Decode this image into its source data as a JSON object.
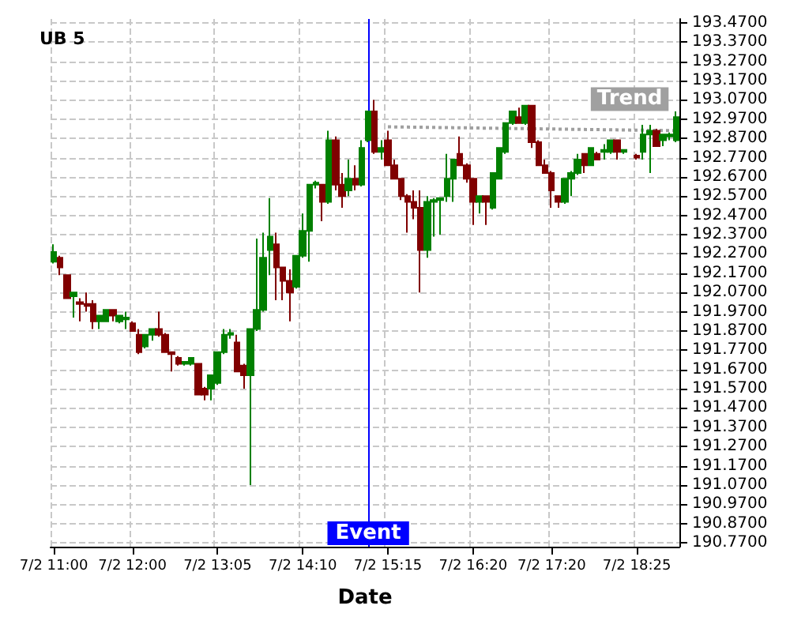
{
  "chart_data": {
    "type": "candlestick",
    "title": "UB 5",
    "xlabel": "Date",
    "categories": [
      "7/2 11:00",
      null,
      null,
      null,
      null,
      null,
      null,
      null,
      null,
      null,
      null,
      null,
      "7/2 12:00",
      null,
      null,
      null,
      null,
      null,
      null,
      null,
      null,
      null,
      null,
      null,
      null,
      "7/2 13:05",
      null,
      null,
      null,
      null,
      null,
      null,
      null,
      null,
      null,
      null,
      null,
      null,
      "7/2 14:10",
      null,
      null,
      null,
      null,
      null,
      null,
      null,
      null,
      null,
      null,
      null,
      null,
      "7/2 15:15",
      null,
      null,
      null,
      null,
      null,
      null,
      null,
      null,
      null,
      null,
      null,
      null,
      "7/2 16:20",
      null,
      null,
      null,
      null,
      null,
      null,
      null,
      null,
      null,
      null,
      null,
      "7/2 17:20",
      null,
      null,
      null,
      null,
      null,
      null,
      null,
      null,
      null,
      null,
      null,
      null,
      "7/2 18:25",
      null,
      null,
      null,
      null,
      null,
      null
    ],
    "ohlc": [
      [
        192.23,
        192.32,
        192.22,
        192.28
      ],
      [
        192.25,
        192.26,
        192.16,
        192.2
      ],
      [
        192.16,
        192.16,
        192.04,
        192.04
      ],
      [
        192.05,
        192.07,
        191.94,
        192.07
      ],
      [
        192.02,
        192.04,
        191.92,
        192.01
      ],
      [
        192.01,
        192.07,
        191.97,
        192.0
      ],
      [
        192.01,
        192.03,
        191.88,
        191.92
      ],
      [
        191.92,
        191.95,
        191.88,
        191.95
      ],
      [
        191.92,
        191.98,
        191.92,
        191.98
      ],
      [
        191.98,
        191.98,
        191.92,
        191.95
      ],
      [
        191.92,
        191.95,
        191.91,
        191.95
      ],
      [
        191.93,
        191.97,
        191.88,
        191.94
      ],
      [
        191.91,
        191.92,
        191.87,
        191.87
      ],
      [
        191.85,
        191.88,
        191.75,
        191.76
      ],
      [
        191.79,
        191.85,
        191.78,
        191.85
      ],
      [
        191.85,
        191.88,
        191.82,
        191.88
      ],
      [
        191.88,
        191.97,
        191.84,
        191.85
      ],
      [
        191.85,
        191.86,
        191.76,
        191.76
      ],
      [
        191.76,
        191.76,
        191.66,
        191.75
      ],
      [
        191.73,
        191.74,
        191.69,
        191.7
      ],
      [
        191.7,
        191.71,
        191.69,
        191.71
      ],
      [
        191.7,
        191.73,
        191.69,
        191.73
      ],
      [
        191.7,
        191.7,
        191.54,
        191.54
      ],
      [
        191.57,
        191.58,
        191.51,
        191.54
      ],
      [
        191.57,
        191.64,
        191.51,
        191.64
      ],
      [
        191.6,
        191.76,
        191.59,
        191.76
      ],
      [
        191.76,
        191.88,
        191.75,
        191.85
      ],
      [
        191.85,
        191.88,
        191.83,
        191.86
      ],
      [
        191.81,
        191.85,
        191.66,
        191.66
      ],
      [
        191.69,
        191.7,
        191.57,
        191.64
      ],
      [
        191.64,
        191.88,
        191.07,
        191.88
      ],
      [
        191.88,
        192.35,
        191.87,
        191.98
      ],
      [
        191.98,
        192.38,
        191.97,
        192.25
      ],
      [
        192.29,
        192.56,
        192.16,
        192.36
      ],
      [
        192.32,
        192.38,
        192.03,
        192.2
      ],
      [
        192.2,
        192.2,
        192.03,
        192.13
      ],
      [
        192.13,
        192.19,
        191.92,
        192.07
      ],
      [
        192.1,
        192.26,
        192.09,
        192.26
      ],
      [
        192.26,
        192.48,
        192.25,
        192.39
      ],
      [
        192.39,
        192.63,
        192.23,
        192.63
      ],
      [
        192.63,
        192.65,
        192.61,
        192.64
      ],
      [
        192.63,
        192.63,
        192.44,
        192.54
      ],
      [
        192.54,
        192.91,
        192.53,
        192.86
      ],
      [
        192.86,
        192.88,
        192.6,
        192.63
      ],
      [
        192.63,
        192.69,
        192.51,
        192.57
      ],
      [
        192.6,
        192.76,
        192.57,
        192.66
      ],
      [
        192.66,
        192.73,
        192.6,
        192.63
      ],
      [
        192.63,
        192.86,
        192.62,
        192.82
      ],
      [
        192.86,
        193.01,
        192.85,
        193.01
      ],
      [
        193.01,
        193.07,
        192.79,
        192.8
      ],
      [
        192.8,
        192.86,
        192.76,
        192.82
      ],
      [
        192.86,
        192.91,
        192.73,
        192.73
      ],
      [
        192.73,
        192.76,
        192.66,
        192.66
      ],
      [
        192.66,
        192.66,
        192.55,
        192.57
      ],
      [
        192.57,
        192.58,
        192.38,
        192.54
      ],
      [
        192.54,
        192.6,
        192.45,
        192.51
      ],
      [
        192.51,
        192.6,
        192.07,
        192.29
      ],
      [
        192.29,
        192.57,
        192.25,
        192.54
      ],
      [
        192.54,
        192.56,
        192.36,
        192.55
      ],
      [
        192.55,
        192.56,
        192.37,
        192.56
      ],
      [
        192.57,
        192.79,
        192.54,
        192.66
      ],
      [
        192.66,
        192.76,
        192.54,
        192.76
      ],
      [
        192.79,
        192.88,
        192.73,
        192.73
      ],
      [
        192.73,
        192.74,
        192.64,
        192.66
      ],
      [
        192.66,
        192.66,
        192.42,
        192.54
      ],
      [
        192.54,
        192.57,
        192.48,
        192.57
      ],
      [
        192.57,
        192.57,
        192.42,
        192.54
      ],
      [
        192.51,
        192.69,
        192.5,
        192.69
      ],
      [
        192.66,
        192.82,
        192.66,
        192.82
      ],
      [
        192.8,
        192.95,
        192.79,
        192.95
      ],
      [
        192.95,
        193.01,
        192.94,
        193.01
      ],
      [
        192.98,
        193.03,
        192.95,
        192.95
      ],
      [
        192.95,
        193.04,
        192.94,
        193.04
      ],
      [
        193.04,
        193.04,
        192.82,
        192.85
      ],
      [
        192.85,
        192.86,
        192.73,
        192.73
      ],
      [
        192.73,
        192.76,
        192.69,
        192.69
      ],
      [
        192.69,
        192.7,
        192.51,
        192.6
      ],
      [
        192.57,
        192.57,
        192.51,
        192.54
      ],
      [
        192.54,
        192.66,
        192.53,
        192.66
      ],
      [
        192.66,
        192.7,
        192.57,
        192.69
      ],
      [
        192.69,
        192.79,
        192.68,
        192.76
      ],
      [
        192.79,
        192.79,
        192.69,
        192.73
      ],
      [
        192.73,
        192.82,
        192.73,
        192.82
      ],
      [
        192.79,
        192.8,
        192.76,
        192.76
      ],
      [
        192.8,
        192.84,
        192.76,
        192.81
      ],
      [
        192.8,
        192.86,
        192.79,
        192.86
      ],
      [
        192.86,
        192.86,
        192.76,
        192.8
      ],
      [
        192.8,
        192.81,
        192.79,
        192.81
      ],
      null,
      [
        192.78,
        192.79,
        192.76,
        192.77
      ],
      [
        192.8,
        192.94,
        192.76,
        192.89
      ],
      [
        192.89,
        192.94,
        192.69,
        192.91
      ],
      [
        192.91,
        192.92,
        192.83,
        192.83
      ],
      [
        192.86,
        192.89,
        192.83,
        192.89
      ],
      [
        192.88,
        192.9,
        192.86,
        192.89
      ],
      [
        192.86,
        193.01,
        192.85,
        192.98
      ]
    ],
    "colors": [
      "#008000",
      "#800000",
      "#800000",
      "#008000",
      "#800000",
      "#800000",
      "#800000",
      "#008000",
      "#008000",
      "#800000",
      "#008000",
      "#008000",
      "#800000",
      "#800000",
      "#008000",
      "#008000",
      "#800000",
      "#800000",
      "#800000",
      "#800000",
      "#008000",
      "#008000",
      "#800000",
      "#800000",
      "#008000",
      "#008000",
      "#008000",
      "#008000",
      "#800000",
      "#800000",
      "#008000",
      "#008000",
      "#008000",
      "#008000",
      "#800000",
      "#800000",
      "#800000",
      "#008000",
      "#008000",
      "#008000",
      "#008000",
      "#800000",
      "#008000",
      "#800000",
      "#800000",
      "#008000",
      "#800000",
      "#008000",
      "#008000",
      "#800000",
      "#008000",
      "#800000",
      "#800000",
      "#800000",
      "#800000",
      "#800000",
      "#800000",
      "#008000",
      "#008000",
      "#008000",
      "#008000",
      "#008000",
      "#800000",
      "#800000",
      "#800000",
      "#008000",
      "#800000",
      "#008000",
      "#008000",
      "#008000",
      "#008000",
      "#800000",
      "#008000",
      "#800000",
      "#800000",
      "#800000",
      "#800000",
      "#800000",
      "#008000",
      "#008000",
      "#008000",
      "#800000",
      "#008000",
      "#800000",
      "#008000",
      "#008000",
      "#800000",
      "#008000",
      null,
      "#800000",
      "#008000",
      "#008000",
      "#800000",
      "#008000",
      "#008000",
      "#008000"
    ],
    "series": [
      {
        "type": "line",
        "name": "Trend",
        "color": "#a0a0a0",
        "line_style": "dotted",
        "marker": "none",
        "values": [
          null,
          null,
          null,
          null,
          null,
          null,
          null,
          null,
          null,
          null,
          null,
          null,
          null,
          null,
          null,
          null,
          null,
          null,
          null,
          null,
          null,
          null,
          null,
          null,
          null,
          null,
          null,
          null,
          null,
          null,
          null,
          null,
          null,
          null,
          null,
          null,
          null,
          null,
          null,
          null,
          null,
          null,
          null,
          null,
          null,
          null,
          null,
          null,
          null,
          null,
          null,
          192.93,
          null,
          null,
          null,
          null,
          null,
          null,
          null,
          null,
          null,
          null,
          null,
          null,
          null,
          null,
          null,
          null,
          null,
          null,
          null,
          null,
          null,
          null,
          null,
          null,
          null,
          null,
          null,
          null,
          null,
          null,
          null,
          null,
          null,
          null,
          null,
          null,
          null,
          null,
          null,
          null,
          null,
          null,
          null,
          192.91
        ]
      }
    ],
    "ylim": [
      190.75,
      193.49
    ],
    "yticks": [
      {
        "value": 190.77,
        "label": "190.7700"
      },
      {
        "value": 190.87,
        "label": "190.8700"
      },
      {
        "value": 190.97,
        "label": "190.9700"
      },
      {
        "value": 191.07,
        "label": "191.0700"
      },
      {
        "value": 191.17,
        "label": "191.1700"
      },
      {
        "value": 191.27,
        "label": "191.2700"
      },
      {
        "value": 191.37,
        "label": "191.3700"
      },
      {
        "value": 191.47,
        "label": "191.4700"
      },
      {
        "value": 191.57,
        "label": "191.5700"
      },
      {
        "value": 191.67,
        "label": "191.6700"
      },
      {
        "value": 191.77,
        "label": "191.7700"
      },
      {
        "value": 191.87,
        "label": "191.8700"
      },
      {
        "value": 191.97,
        "label": "191.9700"
      },
      {
        "value": 192.07,
        "label": "192.0700"
      },
      {
        "value": 192.17,
        "label": "192.1700"
      },
      {
        "value": 192.27,
        "label": "192.2700"
      },
      {
        "value": 192.37,
        "label": "192.3700"
      },
      {
        "value": 192.47,
        "label": "192.4700"
      },
      {
        "value": 192.57,
        "label": "192.5700"
      },
      {
        "value": 192.67,
        "label": "192.6700"
      },
      {
        "value": 192.77,
        "label": "192.7700"
      },
      {
        "value": 192.87,
        "label": "192.8700"
      },
      {
        "value": 192.97,
        "label": "192.9700"
      },
      {
        "value": 193.07,
        "label": "193.0700"
      },
      {
        "value": 193.17,
        "label": "193.1700"
      },
      {
        "value": 193.27,
        "label": "193.2700"
      },
      {
        "value": 193.37,
        "label": "193.3700"
      },
      {
        "value": 193.47,
        "label": "193.4700"
      }
    ],
    "annotations": [
      "Event"
    ],
    "grid": true,
    "legend": false
  }
}
